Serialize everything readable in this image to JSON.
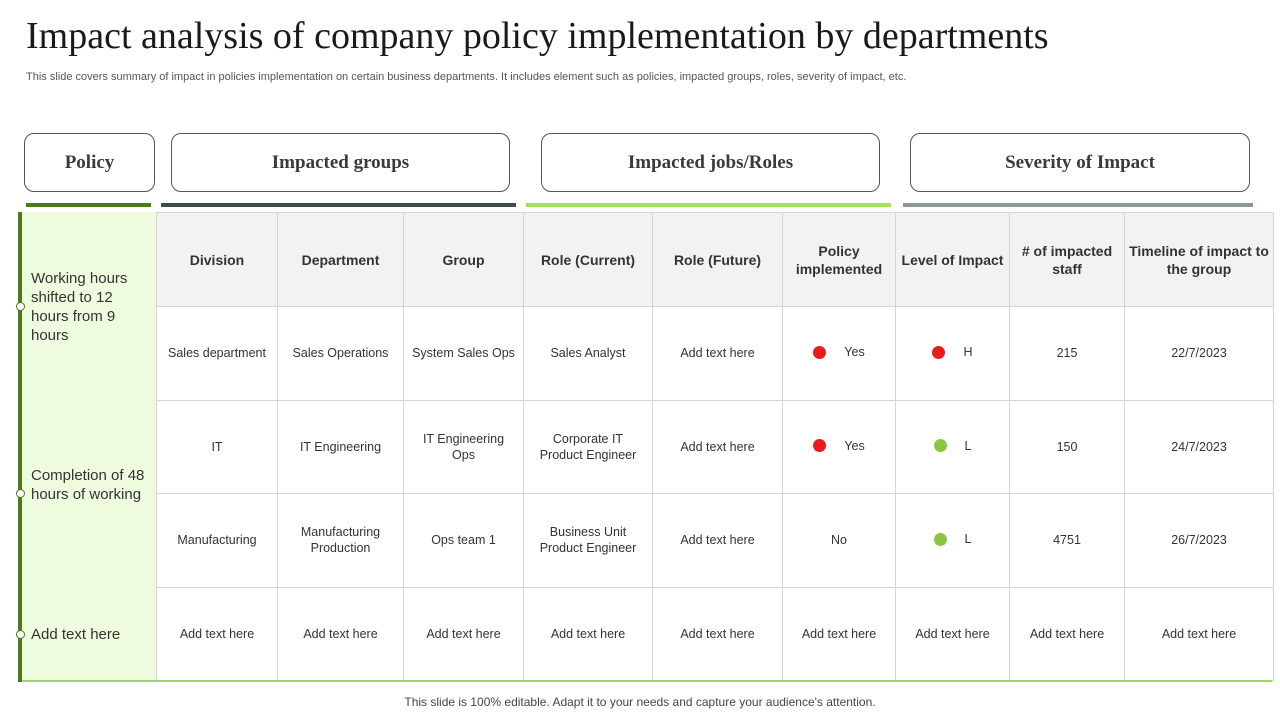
{
  "title": "Impact analysis of company policy implementation by departments",
  "subtitle": "This slide covers summary of impact in policies implementation on certain business departments. It includes element such as policies, impacted groups, roles, severity of impact, etc.",
  "headers": {
    "policy": "Policy",
    "impacted_groups": "Impacted groups",
    "impacted_jobs": "Impacted jobs/Roles",
    "severity": "Severity of Impact"
  },
  "colors": {
    "line_policy": "#4a7a1a",
    "line_groups": "#3f4a4f",
    "line_jobs": "#a6e05a",
    "line_severity": "#8c979c",
    "high": "#e81c1c",
    "low": "#8cc63f"
  },
  "policies": [
    "Working hours shifted to 12 hours from 9 hours",
    "Completion of 48 hours of working",
    "Add text here"
  ],
  "columns": [
    "Division",
    "Department",
    "Group",
    "Role (Current)",
    "Role (Future)",
    "Policy implemented",
    "Level of Impact",
    "# of impacted staff",
    "Timeline of impact to the group"
  ],
  "rows": [
    {
      "division": "Sales department",
      "department": "Sales Operations",
      "group": "System Sales Ops",
      "role_current": "Sales Analyst",
      "role_future": "Add text here",
      "policy_implemented": "Yes",
      "policy_dot": "red",
      "level": "H",
      "level_dot": "red",
      "staff": "215",
      "timeline": "22/7/2023"
    },
    {
      "division": "IT",
      "department": "IT Engineering",
      "group": "IT Engineering Ops",
      "role_current": "Corporate  IT Product Engineer",
      "role_future": "Add text here",
      "policy_implemented": "Yes",
      "policy_dot": "red",
      "level": "L",
      "level_dot": "green",
      "staff": "150",
      "timeline": "24/7/2023"
    },
    {
      "division": "Manufacturing",
      "department": "Manufacturing Production",
      "group": "Ops team 1",
      "role_current": "Business Unit Product Engineer",
      "role_future": "Add text here",
      "policy_implemented": "No",
      "policy_dot": "",
      "level": "L",
      "level_dot": "green",
      "staff": "4751",
      "timeline": "26/7/2023"
    },
    {
      "division": "Add text here",
      "department": "Add text here",
      "group": "Add text here",
      "role_current": "Add text here",
      "role_future": "Add text here",
      "policy_implemented": "Add text here",
      "policy_dot": "",
      "level": "Add text here",
      "level_dot": "",
      "staff": "Add text here",
      "timeline": "Add text here"
    }
  ],
  "footer": "This slide is 100% editable. Adapt it to your needs and capture your audience's attention."
}
